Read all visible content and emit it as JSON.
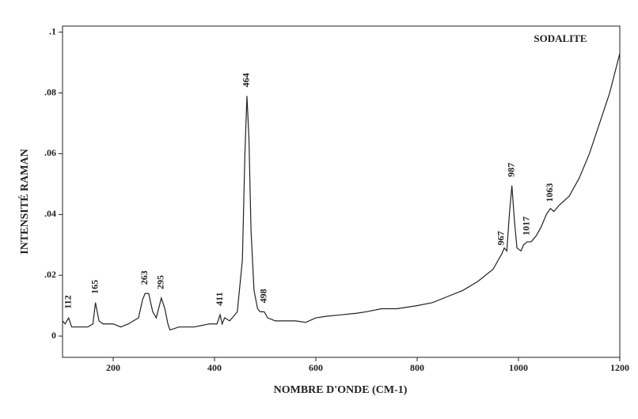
{
  "chart_data": {
    "type": "line",
    "title": "SODALITE",
    "x_label": "NOMBRE D'ONDE (CM-1)",
    "y_label": "INTENSITÉ RAMAN",
    "xlim": [
      100,
      1200
    ],
    "ylim": [
      -0.007,
      0.102
    ],
    "xticks": [
      200,
      400,
      600,
      800,
      1000,
      1200
    ],
    "yticks": [
      0,
      {
        "value": 0.02,
        "label": ".02"
      },
      {
        "value": 0.04,
        "label": ".04"
      },
      {
        "value": 0.06,
        "label": ".06"
      },
      {
        "value": 0.08,
        "label": ".08"
      },
      {
        "value": 0.1,
        "label": ".1"
      }
    ],
    "series": [
      {
        "color": "#222222",
        "x": [
          100,
          105,
          112,
          118,
          130,
          150,
          160,
          165,
          172,
          180,
          200,
          215,
          230,
          250,
          258,
          263,
          270,
          278,
          285,
          295,
          302,
          308,
          312,
          330,
          360,
          390,
          405,
          411,
          415,
          420,
          430,
          445,
          455,
          460,
          464,
          468,
          472,
          478,
          485,
          490,
          498,
          505,
          520,
          540,
          560,
          580,
          600,
          620,
          650,
          680,
          700,
          730,
          760,
          800,
          830,
          860,
          890,
          920,
          950,
          960,
          967,
          972,
          977,
          982,
          987,
          992,
          997,
          1005,
          1010,
          1017,
          1025,
          1035,
          1045,
          1055,
          1063,
          1070,
          1080,
          1100,
          1120,
          1140,
          1160,
          1180,
          1200
        ],
        "values": [
          0.005,
          0.004,
          0.006,
          0.003,
          0.003,
          0.003,
          0.004,
          0.011,
          0.005,
          0.004,
          0.004,
          0.003,
          0.004,
          0.006,
          0.012,
          0.014,
          0.014,
          0.008,
          0.006,
          0.0125,
          0.009,
          0.004,
          0.002,
          0.003,
          0.003,
          0.004,
          0.004,
          0.007,
          0.004,
          0.006,
          0.005,
          0.008,
          0.025,
          0.06,
          0.079,
          0.065,
          0.035,
          0.015,
          0.009,
          0.008,
          0.008,
          0.006,
          0.005,
          0.005,
          0.005,
          0.0045,
          0.006,
          0.0065,
          0.007,
          0.0075,
          0.008,
          0.009,
          0.009,
          0.01,
          0.011,
          0.013,
          0.015,
          0.018,
          0.022,
          0.025,
          0.027,
          0.029,
          0.028,
          0.04,
          0.0495,
          0.038,
          0.029,
          0.028,
          0.03,
          0.031,
          0.031,
          0.033,
          0.036,
          0.04,
          0.042,
          0.041,
          0.043,
          0.046,
          0.052,
          0.06,
          0.07,
          0.08,
          0.093
        ]
      }
    ],
    "annotations": [
      {
        "text": "112",
        "x": 112,
        "y": 0.006
      },
      {
        "text": "165",
        "x": 165,
        "y": 0.011
      },
      {
        "text": "263",
        "x": 263,
        "y": 0.014
      },
      {
        "text": "295",
        "x": 295,
        "y": 0.0125
      },
      {
        "text": "411",
        "x": 411,
        "y": 0.007
      },
      {
        "text": "464",
        "x": 464,
        "y": 0.079
      },
      {
        "text": "498",
        "x": 498,
        "y": 0.008
      },
      {
        "text": "967",
        "x": 967,
        "y": 0.027
      },
      {
        "text": "987",
        "x": 987,
        "y": 0.0495
      },
      {
        "text": "1017",
        "x": 1017,
        "y": 0.031
      },
      {
        "text": "1063",
        "x": 1063,
        "y": 0.042
      }
    ]
  }
}
